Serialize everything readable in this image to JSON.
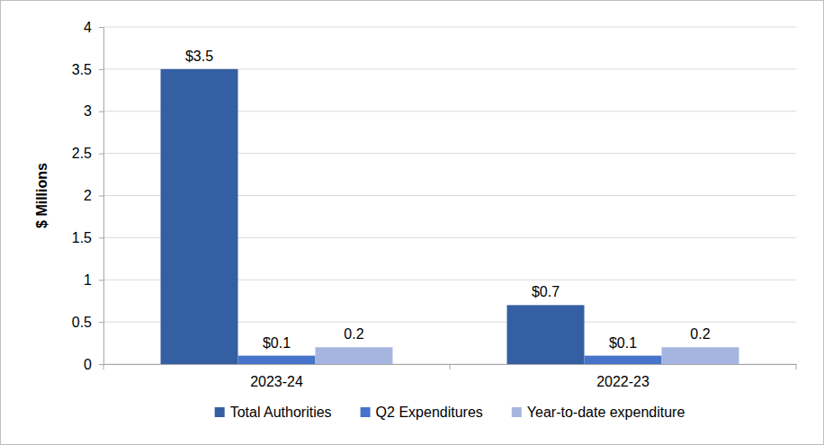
{
  "chart_data": {
    "type": "bar",
    "y_label": "$ Millions",
    "categories": [
      "2023-24",
      "2022-23"
    ],
    "series": [
      {
        "name": "Total Authorities",
        "color": "#355fa3",
        "values": [
          3.5,
          0.7
        ],
        "value_labels": [
          "$3.5",
          "$0.7"
        ]
      },
      {
        "name": "Q2 Expenditures",
        "color": "#4674c8",
        "values": [
          0.1,
          0.1
        ],
        "value_labels": [
          "$0.1",
          "$0.1"
        ]
      },
      {
        "name": "Year-to-date expenditure",
        "color": "#a6b5e0",
        "values": [
          0.2,
          0.2
        ]
      }
    ],
    "ylim": [
      0,
      4
    ],
    "yticks": [
      0,
      0.5,
      1,
      1.5,
      2,
      2.5,
      3,
      3.5,
      4
    ],
    "grid": true,
    "legend": "bottom",
    "data_labels": true
  }
}
